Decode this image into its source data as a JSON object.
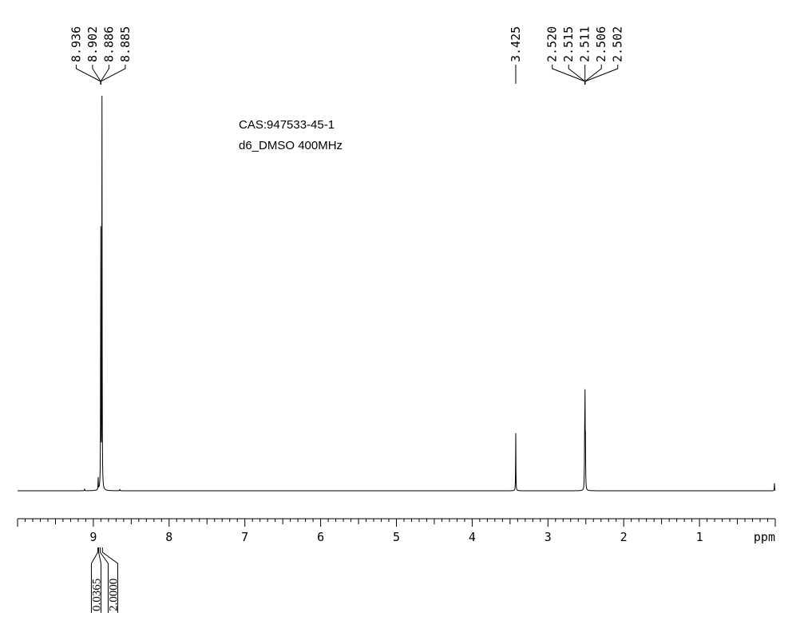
{
  "chart_data": {
    "type": "line",
    "annotations": [
      "CAS:947533-45-1",
      "d6_DMSO 400MHz"
    ],
    "x_unit": "ppm",
    "xlim": [
      10.0,
      0.0
    ],
    "x_reversed": true,
    "x_ticks": [
      9,
      8,
      7,
      6,
      5,
      4,
      3,
      2,
      1
    ],
    "peaks": [
      {
        "x": 9.115,
        "height": 0.005
      },
      {
        "x": 8.936,
        "height": 0.03
      },
      {
        "x": 8.902,
        "height": 0.68
      },
      {
        "x": 8.886,
        "height": 1.0
      },
      {
        "x": 8.65,
        "height": 0.004
      },
      {
        "x": 3.425,
        "height": 0.148
      },
      {
        "x": 2.52,
        "height": 0.02
      },
      {
        "x": 2.515,
        "height": 0.12
      },
      {
        "x": 2.511,
        "height": 0.215
      },
      {
        "x": 2.506,
        "height": 0.12
      },
      {
        "x": 2.502,
        "height": 0.02
      },
      {
        "x": 0.01,
        "height": 0.02
      }
    ],
    "peak_label_groups": [
      {
        "labels": [
          "8.936",
          "8.902",
          "8.886",
          "8.885"
        ]
      },
      {
        "labels": [
          "3.425"
        ]
      },
      {
        "labels": [
          "2.520",
          "2.515",
          "2.511",
          "2.506",
          "2.502"
        ]
      }
    ],
    "integrals": [
      {
        "range": [
          8.94,
          8.93
        ],
        "value": "0.0365"
      },
      {
        "range": [
          8.91,
          8.88
        ],
        "value": "2.0000"
      }
    ]
  }
}
